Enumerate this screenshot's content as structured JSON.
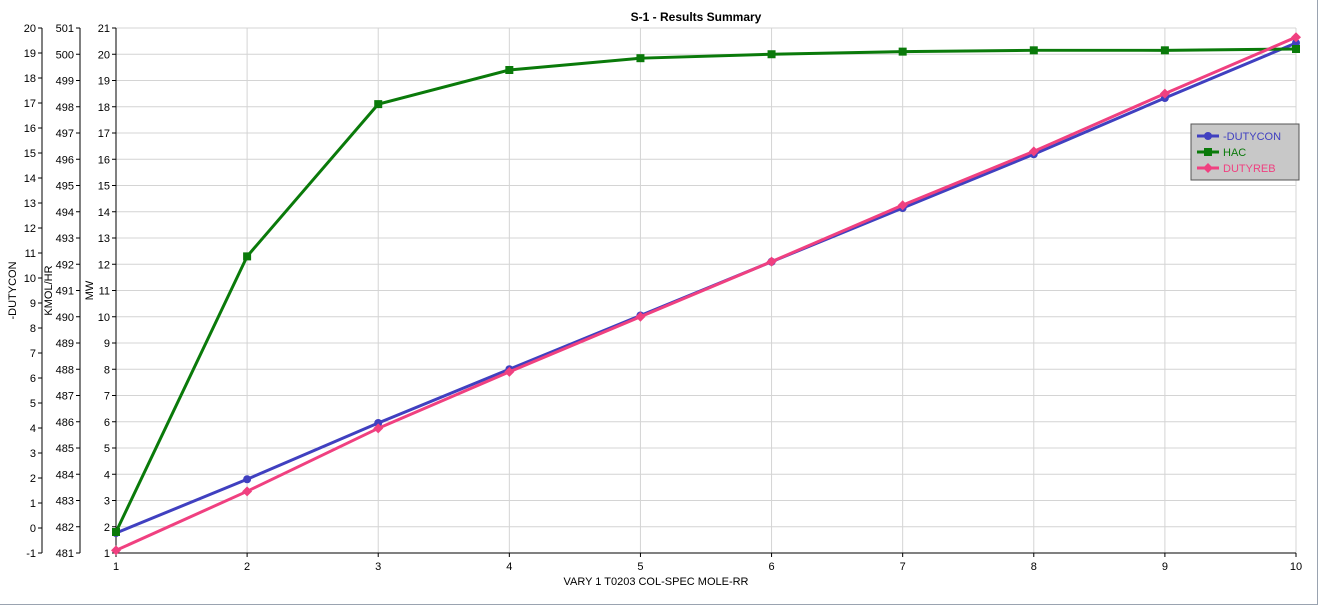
{
  "chart_data": {
    "type": "line",
    "title": "S-1 - Results Summary",
    "xlabel": "VARY   1 T0203    COL-SPEC MOLE-RR",
    "x": [
      1,
      2,
      3,
      4,
      5,
      6,
      7,
      8,
      9,
      10
    ],
    "xlim": [
      1,
      10
    ],
    "grid": true,
    "legend_position": "right",
    "y_axes": [
      {
        "id": "duty",
        "label": "-DUTYCON",
        "lim": [
          -1,
          20
        ],
        "ticks": [
          "-1",
          "0",
          "1",
          "2",
          "3",
          "4",
          "5",
          "6",
          "7",
          "8",
          "9",
          "10",
          "11",
          "12",
          "13",
          "14",
          "15",
          "16",
          "17",
          "18",
          "19",
          "20"
        ]
      },
      {
        "id": "hac",
        "label": "KMOL/HR",
        "lim": [
          481,
          501
        ],
        "ticks": [
          "481",
          "482",
          "483",
          "484",
          "485",
          "486",
          "487",
          "488",
          "489",
          "490",
          "491",
          "492",
          "493",
          "494",
          "495",
          "496",
          "497",
          "498",
          "499",
          "500",
          "501"
        ]
      },
      {
        "id": "mw",
        "label": "MW",
        "lim": [
          1,
          21
        ],
        "ticks": [
          "1",
          "2",
          "3",
          "4",
          "5",
          "6",
          "7",
          "8",
          "9",
          "10",
          "11",
          "12",
          "13",
          "14",
          "15",
          "16",
          "17",
          "18",
          "19",
          "20",
          "21"
        ]
      }
    ],
    "series": [
      {
        "name": "-DUTYCON",
        "axis": "duty",
        "color": "#4040c0",
        "marker": "circle",
        "values": [
          -0.2,
          1.95,
          4.2,
          6.35,
          8.5,
          10.65,
          12.8,
          14.95,
          17.2,
          19.4
        ]
      },
      {
        "name": "HAC",
        "axis": "hac",
        "color": "#0a7a0a",
        "marker": "square",
        "values": [
          481.8,
          492.3,
          498.1,
          499.4,
          499.85,
          500.0,
          500.1,
          500.15,
          500.15,
          500.2
        ]
      },
      {
        "name": "DUTYREB",
        "axis": "mw",
        "color": "#f04080",
        "marker": "diamond",
        "values": [
          1.1,
          3.35,
          5.75,
          7.9,
          10.0,
          12.1,
          14.25,
          16.3,
          18.5,
          20.65
        ]
      }
    ]
  }
}
